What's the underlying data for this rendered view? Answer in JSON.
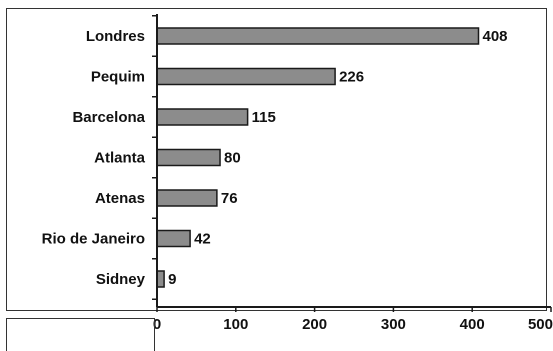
{
  "chart_data": {
    "type": "bar",
    "orientation": "horizontal",
    "title": "",
    "xlabel": "",
    "ylabel": "",
    "categories": [
      "Londres",
      "Pequim",
      "Barcelona",
      "Atlanta",
      "Atenas",
      "Rio de Janeiro",
      "Sidney"
    ],
    "values": [
      408,
      226,
      115,
      80,
      76,
      42,
      9
    ],
    "value_labels": [
      "408",
      "226",
      "115",
      "80",
      "76",
      "42",
      "9"
    ],
    "xlim": [
      0,
      500
    ],
    "xticks": [
      0,
      100,
      200,
      300,
      400,
      500
    ],
    "xtick_labels": [
      "0",
      "100",
      "200",
      "300",
      "400",
      "500"
    ],
    "grid": false,
    "legend": "none",
    "colors": {
      "bar_fill": "#8c8c8c",
      "bar_stroke": "#1a1a1a",
      "axis": "#1a1a1a",
      "frame": "#333333",
      "text": "#111111"
    }
  }
}
